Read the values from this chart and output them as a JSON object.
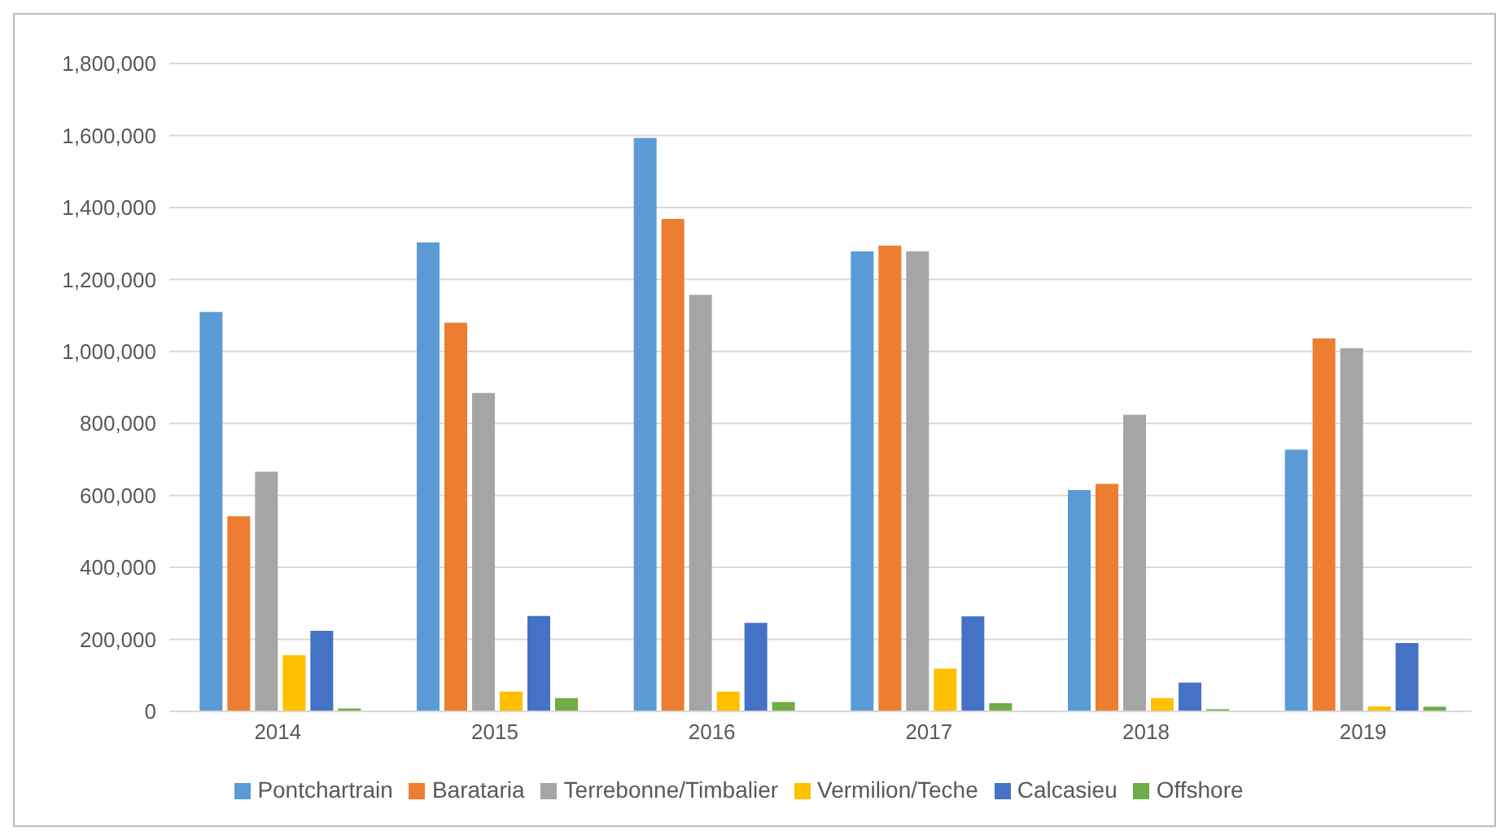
{
  "chart_data": {
    "type": "bar",
    "categories": [
      "2014",
      "2015",
      "2016",
      "2017",
      "2018",
      "2019"
    ],
    "series": [
      {
        "name": "Pontchartrain",
        "color": "#5b9bd5",
        "values": [
          1110000,
          1303000,
          1593000,
          1278000,
          615000,
          727000
        ]
      },
      {
        "name": "Barataria",
        "color": "#ed7d31",
        "values": [
          542000,
          1080000,
          1368000,
          1294000,
          632000,
          1036000
        ]
      },
      {
        "name": "Terrebonne/Timbalier",
        "color": "#a5a5a5",
        "values": [
          666000,
          885000,
          1157000,
          1278000,
          824000,
          1009000
        ]
      },
      {
        "name": "Vermilion/Teche",
        "color": "#ffc000",
        "values": [
          156000,
          55000,
          55000,
          119000,
          37000,
          14000
        ]
      },
      {
        "name": "Calcasieu",
        "color": "#4472c4",
        "values": [
          224000,
          265000,
          246000,
          264000,
          80000,
          190000
        ]
      },
      {
        "name": "Offshore",
        "color": "#70ad47",
        "values": [
          8000,
          37000,
          26000,
          23000,
          6000,
          13000
        ]
      }
    ],
    "ylim": [
      0,
      1800000
    ],
    "yticks": [
      {
        "value": 0,
        "label": "0"
      },
      {
        "value": 200000,
        "label": "200,000"
      },
      {
        "value": 400000,
        "label": "400,000"
      },
      {
        "value": 600000,
        "label": "600,000"
      },
      {
        "value": 800000,
        "label": "800,000"
      },
      {
        "value": 1000000,
        "label": "1,000,000"
      },
      {
        "value": 1200000,
        "label": "1,200,000"
      },
      {
        "value": 1400000,
        "label": "1,400,000"
      },
      {
        "value": 1600000,
        "label": "1,600,000"
      },
      {
        "value": 1800000,
        "label": "1,800,000"
      }
    ],
    "grid": "y",
    "legend": "bottom"
  }
}
